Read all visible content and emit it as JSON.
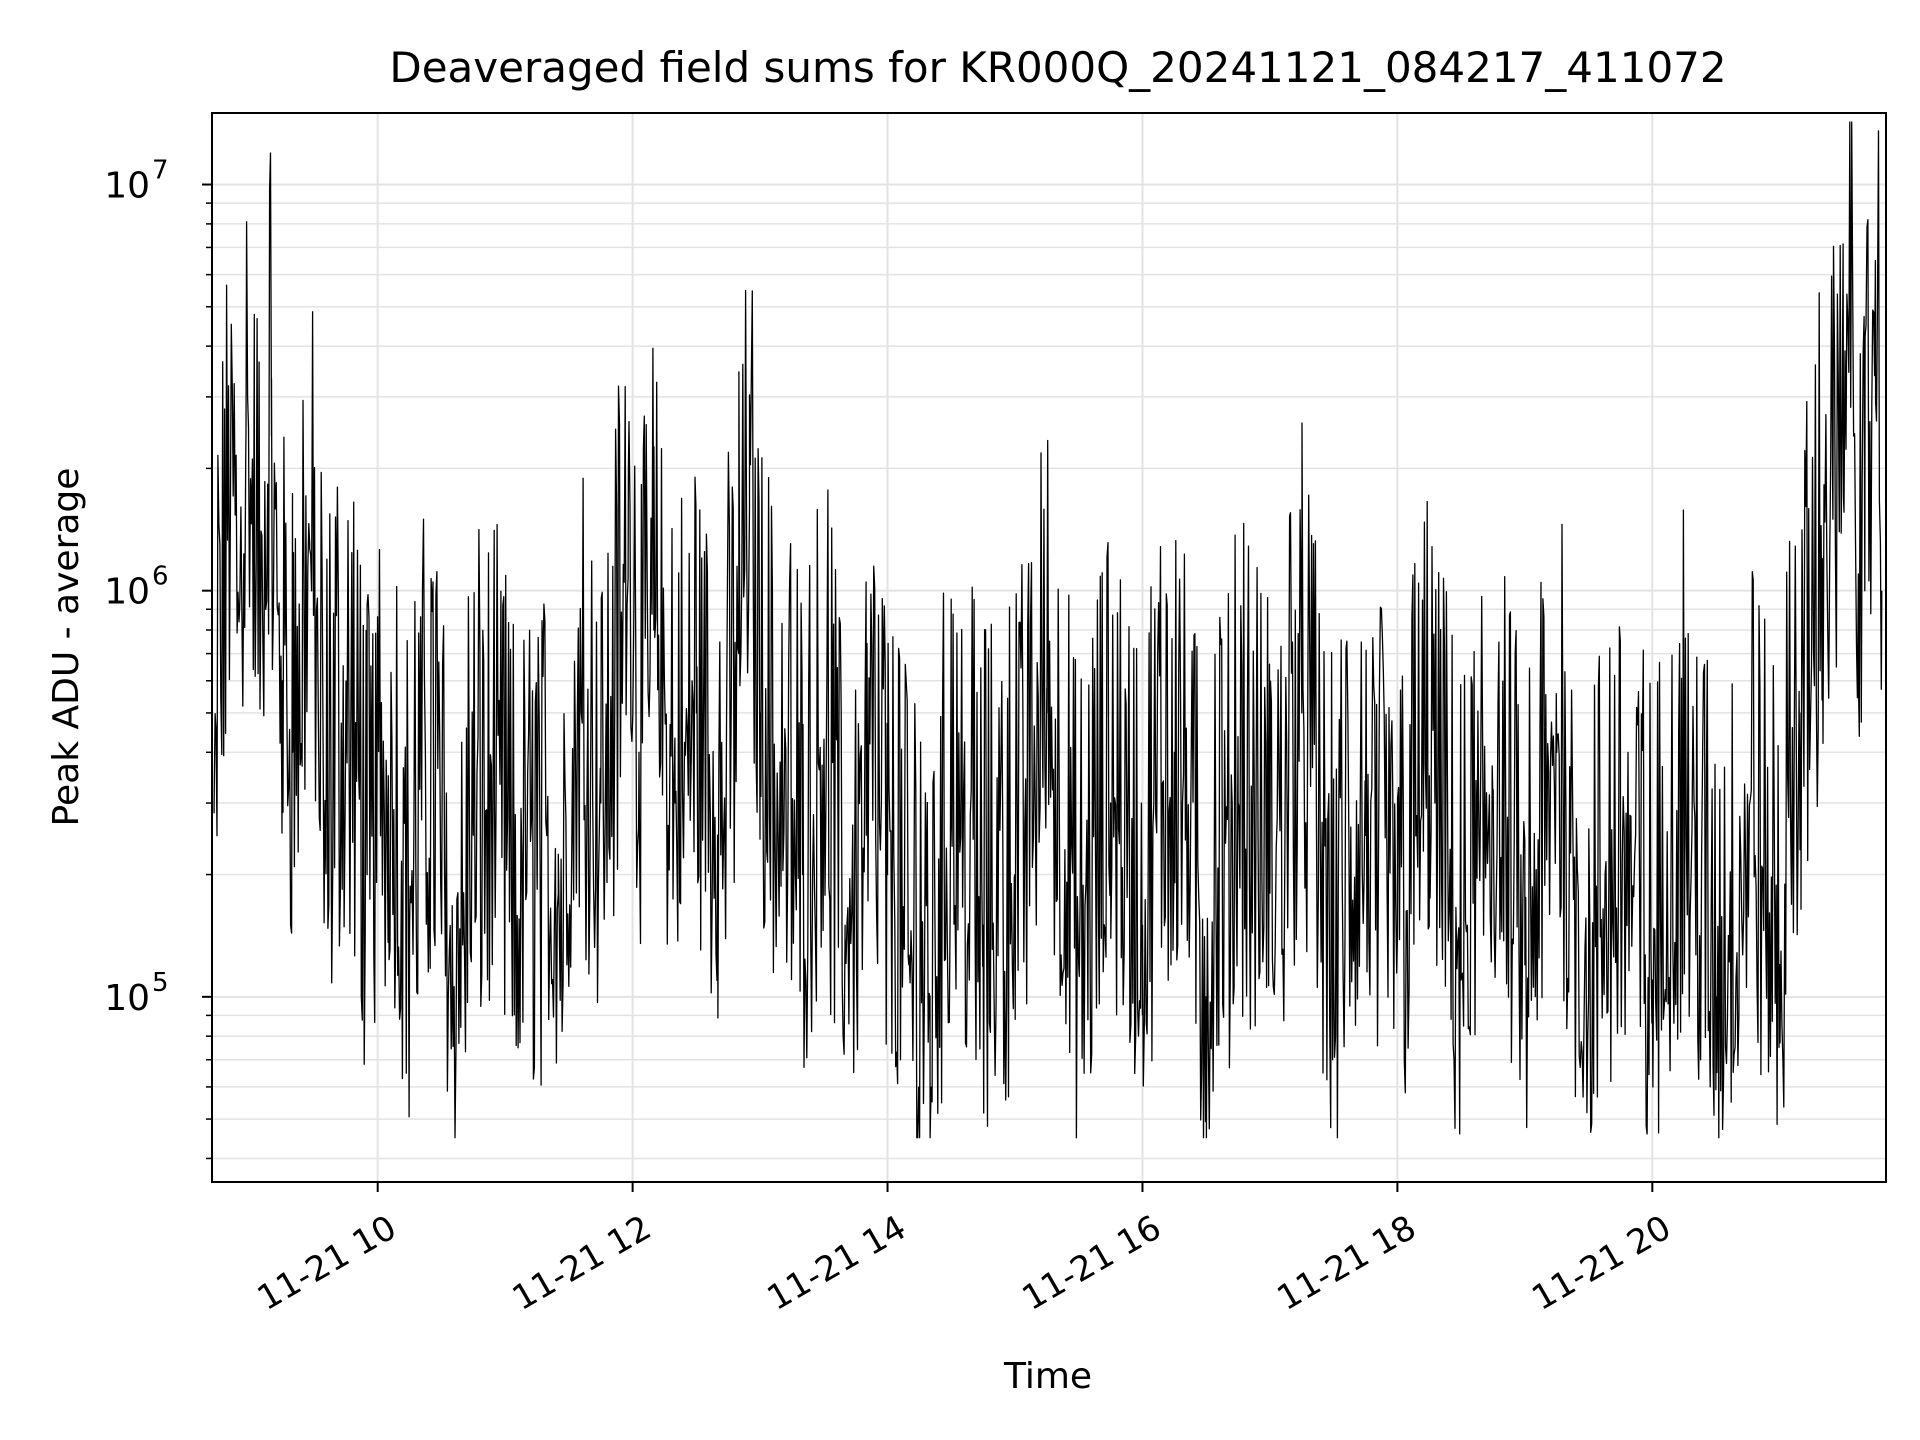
{
  "chart_data": {
    "type": "line",
    "title": "Deaveraged field sums for KR000Q_20241121_084217_411072",
    "xlabel": "Time",
    "ylabel": "Peak ADU - average",
    "x_scale": "time",
    "y_scale": "log",
    "xlim": [
      "2024-11-21T08:42",
      "2024-11-21T21:50"
    ],
    "ylim": [
      35000,
      15000000
    ],
    "x_ticks": [
      {
        "value": "2024-11-21T10:00",
        "label": "11-21 10"
      },
      {
        "value": "2024-11-21T12:00",
        "label": "11-21 12"
      },
      {
        "value": "2024-11-21T14:00",
        "label": "11-21 14"
      },
      {
        "value": "2024-11-21T16:00",
        "label": "11-21 16"
      },
      {
        "value": "2024-11-21T18:00",
        "label": "11-21 18"
      },
      {
        "value": "2024-11-21T20:00",
        "label": "11-21 20"
      }
    ],
    "y_ticks": [
      {
        "value": 100000,
        "base": "10",
        "exp": "5"
      },
      {
        "value": 1000000,
        "base": "10",
        "exp": "6"
      },
      {
        "value": 10000000,
        "base": "10",
        "exp": "7"
      }
    ],
    "grid": "major and minor",
    "line_color": "#000000",
    "series": [
      {
        "x": [
          "08:43",
          "08:50",
          "08:55",
          "08:58",
          "09:02",
          "09:05",
          "09:10",
          "09:15",
          "09:20",
          "09:28",
          "09:35",
          "09:45",
          "09:55",
          "10:05",
          "10:15",
          "10:25",
          "10:35",
          "10:45",
          "10:55",
          "11:05",
          "11:15",
          "11:25",
          "11:35",
          "11:45",
          "11:55",
          "11:58",
          "12:03",
          "12:10",
          "12:20",
          "12:30",
          "12:40",
          "12:50",
          "12:55",
          "13:00",
          "13:10",
          "13:20",
          "13:30",
          "13:40",
          "13:50",
          "14:00",
          "14:10",
          "14:20",
          "14:30",
          "14:45",
          "15:00",
          "15:15",
          "15:30",
          "15:45",
          "16:00",
          "16:15",
          "16:30",
          "16:45",
          "17:00",
          "17:15",
          "17:30",
          "17:45",
          "18:00",
          "18:15",
          "18:30",
          "18:45",
          "19:00",
          "19:15",
          "19:30",
          "19:45",
          "20:00",
          "20:15",
          "20:30",
          "20:45",
          "21:00",
          "21:05",
          "21:10",
          "21:15",
          "21:20",
          "21:25",
          "21:30",
          "21:33",
          "21:37",
          "21:40",
          "21:45",
          "21:48"
        ],
        "y": [
          300000,
          1500000,
          900000,
          2500000,
          1200000,
          1000000,
          2400000,
          600000,
          400000,
          1300000,
          250000,
          500000,
          200000,
          350000,
          150000,
          400000,
          100000,
          250000,
          300000,
          150000,
          200000,
          180000,
          400000,
          300000,
          700000,
          2000000,
          400000,
          800000,
          300000,
          500000,
          250000,
          700000,
          1600000,
          500000,
          300000,
          200000,
          400000,
          150000,
          250000,
          200000,
          120000,
          100000,
          300000,
          150000,
          200000,
          500000,
          120000,
          300000,
          150000,
          400000,
          100000,
          300000,
          180000,
          500000,
          120000,
          250000,
          140000,
          350000,
          110000,
          300000,
          120000,
          400000,
          100000,
          250000,
          110000,
          300000,
          100000,
          250000,
          120000,
          300000,
          500000,
          700000,
          1200000,
          1500000,
          1700000,
          11000000,
          1100000,
          1000000,
          6500000,
          1000000
        ]
      }
    ]
  }
}
